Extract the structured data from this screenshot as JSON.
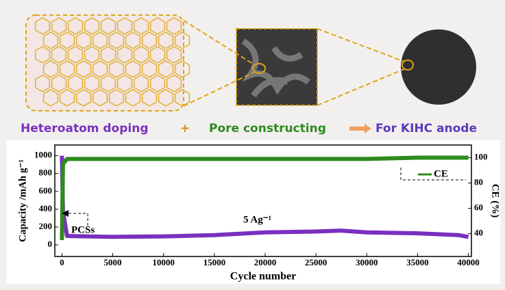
{
  "labels": {
    "doping": "Heteroatom doping",
    "plus": "+",
    "pore": "Pore constructing",
    "anode": "For KIHC anode"
  },
  "chart_data": {
    "type": "line",
    "xlabel": "Cycle number",
    "ylabel": "Capacity /mAh g⁻¹",
    "y2label": "CE (%)",
    "annotations": {
      "pcss": "PCSs",
      "rate": "5 Ag⁻¹"
    },
    "x": [
      0,
      100,
      500,
      5000,
      10000,
      15000,
      20000,
      25000,
      27500,
      30000,
      35000,
      39000,
      40000
    ],
    "series": [
      {
        "color": "#7b2fbf",
        "values": [
          1000,
          380,
          100,
          90,
          95,
          110,
          140,
          150,
          160,
          140,
          130,
          110,
          90
        ]
      },
      {
        "name": "CE",
        "color": "#2e8b1e",
        "axis": "y2",
        "values": [
          35,
          95,
          99,
          99,
          99,
          99,
          99,
          99,
          99,
          99,
          100,
          100,
          100
        ]
      }
    ],
    "xlim": [
      -700,
      40300
    ],
    "ylim": [
      -130,
      1120
    ],
    "y2lim": [
      22,
      110
    ],
    "xticks": [
      0,
      5000,
      10000,
      15000,
      20000,
      25000,
      30000,
      35000,
      40000
    ],
    "yticks": [
      0,
      200,
      400,
      600,
      800,
      1000
    ],
    "y2ticks": [
      40,
      60,
      80,
      100
    ]
  }
}
